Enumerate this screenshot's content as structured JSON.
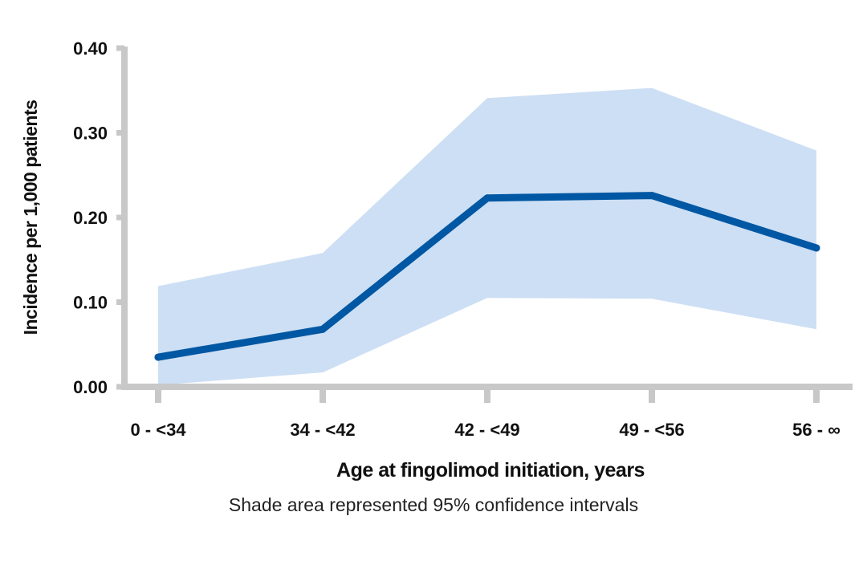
{
  "chart_data": {
    "type": "line",
    "categories": [
      "0 - <34",
      "34 - <42",
      "42 - <49",
      "49 - <56",
      "56 - ∞"
    ],
    "series": [
      {
        "name": "Incidence",
        "values": [
          0.035,
          0.068,
          0.223,
          0.226,
          0.164
        ]
      }
    ],
    "confidence_interval": {
      "label": "95% confidence intervals",
      "lower": [
        0.002,
        0.017,
        0.105,
        0.104,
        0.068
      ],
      "upper": [
        0.119,
        0.158,
        0.341,
        0.353,
        0.279
      ]
    },
    "xlabel": "Age at fingolimod initiation, years",
    "ylabel": "Incidence per 1,000 patients",
    "ylim": [
      0,
      0.4
    ],
    "yticks": [
      0.0,
      0.1,
      0.2,
      0.3,
      0.4
    ],
    "ytick_labels": [
      "0.00",
      "0.10",
      "0.20",
      "0.30",
      "0.40"
    ],
    "grid": false,
    "colors": {
      "line": "#0057a3",
      "band": "#cddff4",
      "axis": "#c8c8c8"
    }
  },
  "footnote": "Shade area represented 95% confidence intervals"
}
